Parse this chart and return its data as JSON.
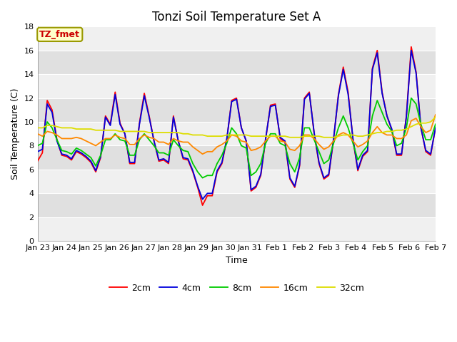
{
  "title": "Tonzi Soil Temperature Set A",
  "xlabel": "Time",
  "ylabel": "Soil Temperature (C)",
  "ylim": [
    0,
    18
  ],
  "tick_labels": [
    "Jan 23",
    "Jan 24",
    "Jan 25",
    "Jan 26",
    "Jan 27",
    "Jan 28",
    "Jan 29",
    "Jan 30",
    "Jan 31",
    "Feb 1",
    "Feb 2",
    "Feb 3",
    "Feb 4",
    "Feb 5",
    "Feb 6",
    "Feb 7"
  ],
  "legend_labels": [
    "2cm",
    "4cm",
    "8cm",
    "16cm",
    "32cm"
  ],
  "legend_colors": [
    "#ff0000",
    "#0000dd",
    "#00cc00",
    "#ff8800",
    "#dddd00"
  ],
  "bg_color": "#ffffff",
  "plot_bg_light": "#f0f0f0",
  "plot_bg_dark": "#e0e0e0",
  "annotation_text": "TZ_fmet",
  "annotation_color": "#cc0000",
  "annotation_bg": "#ffffcc",
  "annotation_border": "#999900",
  "title_fontsize": 12,
  "axis_label_fontsize": 9,
  "tick_fontsize": 8,
  "legend_fontsize": 9,
  "line_width": 1.3,
  "data_2cm": [
    6.7,
    7.4,
    11.8,
    11.0,
    8.5,
    7.2,
    7.1,
    6.8,
    7.5,
    7.3,
    7.0,
    6.6,
    5.8,
    7.0,
    10.5,
    9.8,
    12.5,
    9.9,
    9.0,
    6.5,
    6.5,
    9.9,
    12.4,
    10.5,
    8.4,
    6.7,
    6.8,
    6.5,
    10.5,
    8.4,
    6.9,
    6.8,
    5.8,
    4.5,
    3.0,
    3.8,
    3.8,
    5.8,
    6.5,
    8.5,
    11.8,
    12.0,
    9.5,
    8.4,
    4.2,
    4.5,
    5.5,
    8.5,
    11.4,
    11.5,
    8.6,
    8.3,
    5.2,
    4.5,
    6.3,
    12.0,
    12.5,
    9.0,
    6.5,
    5.2,
    5.5,
    8.5,
    12.3,
    14.6,
    12.5,
    8.5,
    5.9,
    7.1,
    7.5,
    14.5,
    16.0,
    12.5,
    10.5,
    9.3,
    7.2,
    7.2,
    10.5,
    16.3,
    14.2,
    9.5,
    7.5,
    7.2,
    9.5
  ],
  "data_4cm": [
    7.5,
    7.7,
    11.5,
    10.8,
    8.4,
    7.3,
    7.2,
    6.9,
    7.6,
    7.4,
    7.1,
    6.7,
    5.9,
    7.1,
    10.4,
    9.7,
    12.3,
    9.8,
    9.0,
    6.6,
    6.6,
    9.8,
    12.2,
    10.4,
    8.4,
    6.8,
    6.9,
    6.6,
    10.4,
    8.4,
    7.0,
    6.9,
    5.9,
    4.6,
    3.5,
    4.0,
    4.0,
    5.9,
    6.6,
    8.6,
    11.7,
    11.9,
    9.5,
    8.4,
    4.3,
    4.6,
    5.6,
    8.6,
    11.3,
    11.4,
    8.7,
    8.4,
    5.3,
    4.6,
    6.4,
    11.9,
    12.4,
    9.1,
    6.6,
    5.3,
    5.6,
    8.6,
    12.2,
    14.4,
    12.3,
    8.6,
    6.0,
    7.2,
    7.6,
    14.4,
    15.8,
    12.4,
    10.5,
    9.4,
    7.3,
    7.3,
    10.4,
    16.0,
    14.1,
    9.5,
    7.6,
    7.3,
    9.5
  ],
  "data_8cm": [
    8.0,
    8.2,
    10.0,
    9.5,
    8.5,
    7.6,
    7.5,
    7.3,
    7.8,
    7.6,
    7.3,
    7.0,
    6.3,
    7.2,
    8.5,
    8.5,
    9.0,
    8.5,
    8.4,
    7.2,
    7.2,
    8.5,
    9.0,
    8.5,
    8.0,
    7.4,
    7.4,
    7.2,
    8.5,
    8.0,
    7.6,
    7.5,
    6.5,
    5.8,
    5.3,
    5.5,
    5.5,
    6.5,
    7.2,
    8.2,
    9.5,
    9.0,
    8.0,
    7.8,
    5.5,
    5.8,
    6.5,
    8.2,
    9.0,
    9.0,
    8.2,
    8.0,
    6.5,
    5.8,
    7.0,
    9.5,
    9.5,
    8.5,
    7.5,
    6.5,
    6.8,
    8.2,
    9.5,
    10.5,
    9.5,
    8.2,
    6.8,
    7.5,
    8.0,
    10.5,
    11.8,
    10.8,
    9.8,
    9.2,
    8.0,
    8.2,
    9.5,
    12.0,
    11.5,
    9.8,
    8.5,
    8.5,
    9.8
  ],
  "data_16cm": [
    9.0,
    8.8,
    9.2,
    9.1,
    8.9,
    8.6,
    8.6,
    8.6,
    8.7,
    8.6,
    8.4,
    8.2,
    8.0,
    8.3,
    8.6,
    8.6,
    8.9,
    8.7,
    8.6,
    8.1,
    8.1,
    8.6,
    8.9,
    8.7,
    8.6,
    8.3,
    8.3,
    8.1,
    8.6,
    8.4,
    8.3,
    8.3,
    7.9,
    7.6,
    7.3,
    7.5,
    7.5,
    7.9,
    8.1,
    8.4,
    8.9,
    8.8,
    8.4,
    8.3,
    7.6,
    7.7,
    7.9,
    8.4,
    8.8,
    8.8,
    8.4,
    8.3,
    7.7,
    7.6,
    8.0,
    8.9,
    8.9,
    8.6,
    8.1,
    7.7,
    7.9,
    8.4,
    8.9,
    9.1,
    8.9,
    8.4,
    7.9,
    8.1,
    8.4,
    9.1,
    9.6,
    9.1,
    8.9,
    8.9,
    8.6,
    8.6,
    8.9,
    10.1,
    10.3,
    9.6,
    9.1,
    9.3,
    10.6
  ],
  "data_32cm": [
    9.5,
    9.5,
    9.7,
    9.7,
    9.6,
    9.5,
    9.5,
    9.5,
    9.4,
    9.4,
    9.4,
    9.4,
    9.3,
    9.3,
    9.3,
    9.3,
    9.3,
    9.2,
    9.2,
    9.2,
    9.2,
    9.2,
    9.2,
    9.1,
    9.1,
    9.1,
    9.1,
    9.1,
    9.1,
    9.1,
    9.0,
    9.0,
    8.9,
    8.9,
    8.9,
    8.8,
    8.8,
    8.8,
    8.8,
    8.9,
    8.9,
    8.9,
    8.9,
    8.9,
    8.8,
    8.8,
    8.8,
    8.8,
    8.8,
    8.8,
    8.8,
    8.8,
    8.7,
    8.7,
    8.7,
    8.8,
    8.8,
    8.8,
    8.8,
    8.7,
    8.7,
    8.7,
    8.8,
    8.9,
    8.9,
    8.9,
    8.8,
    8.8,
    8.9,
    9.0,
    9.1,
    9.1,
    9.2,
    9.2,
    9.3,
    9.3,
    9.4,
    9.6,
    9.8,
    9.9,
    9.9,
    10.0,
    10.4
  ]
}
